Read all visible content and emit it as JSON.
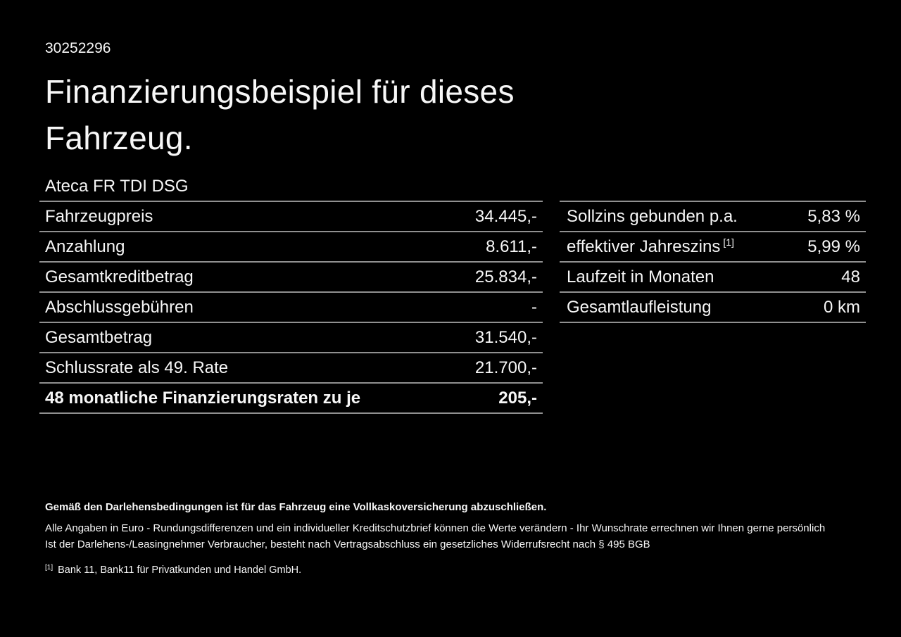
{
  "page": {
    "background": "#000000",
    "text_color": "#f7f7f7",
    "divider_color": "#909090"
  },
  "header": {
    "listing_id": "30252296",
    "title_line1": "Finanzierungsbeispiel für dieses",
    "title_line2": "Fahrzeug.",
    "vehicle_model": "Ateca FR TDI DSG"
  },
  "finance_table": {
    "rows": [
      {
        "label": "Fahrzeugpreis",
        "value": "34.445,-"
      },
      {
        "label": "Anzahlung",
        "value": "8.611,-"
      },
      {
        "label": "Gesamtkreditbetrag",
        "value": "25.834,-"
      },
      {
        "label": "Abschlussgebühren",
        "value": "-"
      },
      {
        "label": "Gesamtbetrag",
        "value": "31.540,-"
      },
      {
        "label": "Schlussrate als 49. Rate",
        "value": "21.700,-"
      }
    ],
    "highlight_row": {
      "label": "48 monatliche Finanzierungsraten zu je",
      "value": "205,-"
    }
  },
  "conditions_table": {
    "rows": [
      {
        "label": "Sollzins gebunden p.a.",
        "sup": "",
        "value": "5,83 %"
      },
      {
        "label": "effektiver Jahreszins",
        "sup": "[1]",
        "value": "5,99 %"
      },
      {
        "label": "Laufzeit in Monaten",
        "sup": "",
        "value": "48"
      },
      {
        "label": "Gesamtlaufleistung",
        "sup": "",
        "value": "0 km"
      }
    ]
  },
  "footer": {
    "bold_note": "Gemäß den Darlehensbedingungen ist für das Fahrzeug eine Vollkaskoversicherung abzuschließen.",
    "note_line1": "Alle Angaben in Euro - Rundungsdifferenzen und ein individueller Kreditschutzbrief können die Werte verändern - Ihr Wunschrate errechnen wir Ihnen gerne persönlich",
    "note_line2": "Ist der Darlehens-/Leasingnehmer Verbraucher, besteht nach Vertragsabschluss ein gesetzliches Widerrufsrecht nach § 495 BGB",
    "footnote_marker": "[1]",
    "footnote_text": "Bank 11, Bank11 für Privatkunden und Handel GmbH."
  }
}
